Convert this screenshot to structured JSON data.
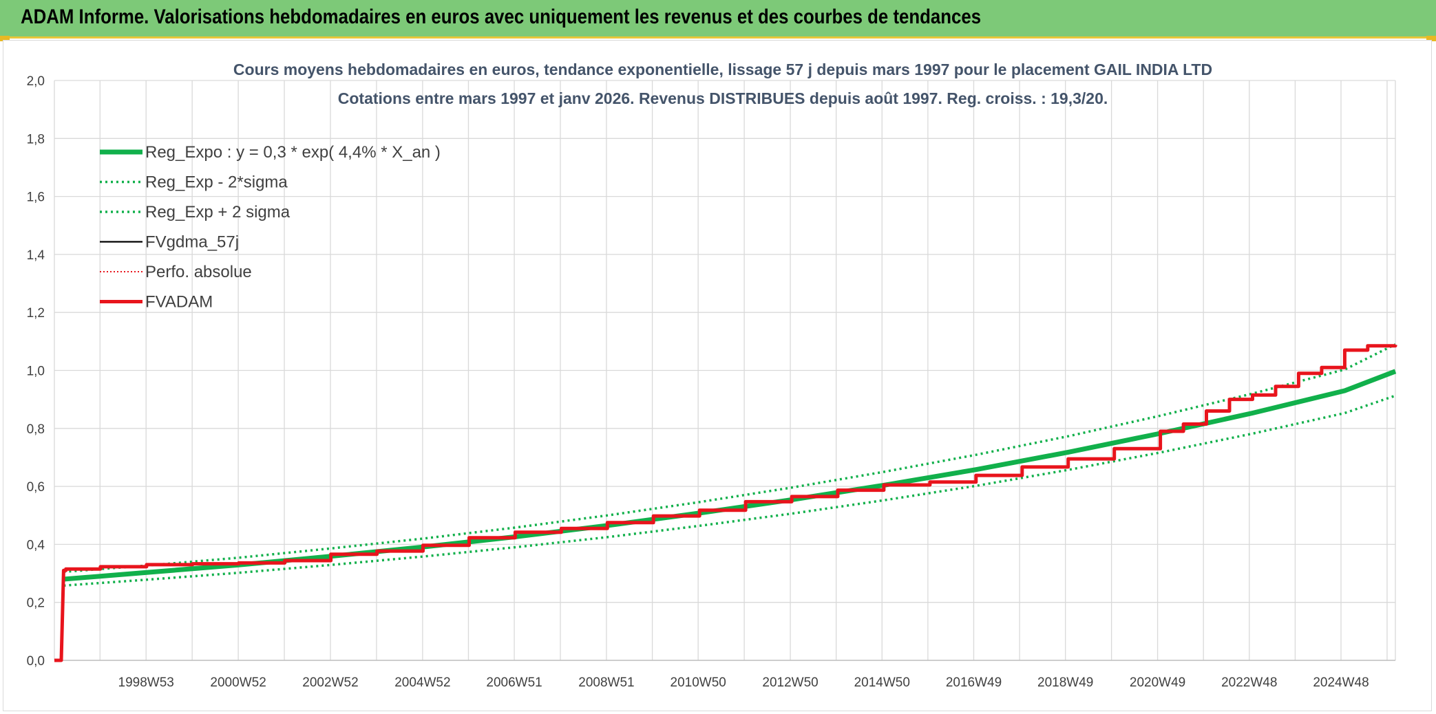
{
  "banner": {
    "title": "ADAM Informe. Valorisations hebdomadaires en euros avec uniquement les revenus et des courbes de tendances"
  },
  "colors": {
    "banner": "#7dc978",
    "banner_border": "#e8c63a",
    "green": "#11b04b",
    "red": "#e8141c",
    "black": "#000000",
    "grid": "#d9d9d9"
  },
  "chart_data": {
    "type": "line",
    "title": "Cours moyens hebdomadaires en euros, tendance exponentielle, lissage 57 j depuis mars 1997 pour le placement GAIL INDIA LTD",
    "subtitle": "Cotations entre mars 1997 et janv 2026. Revenus DISTRIBUES depuis août 1997. Reg. croiss. : 19,3/20.",
    "xlabel": "",
    "ylabel": "",
    "xlim": [
      1997.0,
      2026.1
    ],
    "ylim": [
      0,
      2
    ],
    "y_ticks": [
      "0,0",
      "0,2",
      "0,4",
      "0,6",
      "0,8",
      "1,0",
      "1,2",
      "1,4",
      "1,6",
      "1,8",
      "2,0"
    ],
    "x_ticks": [
      {
        "label": "1998W53",
        "x": 1998.99
      },
      {
        "label": "2000W52",
        "x": 2000.99
      },
      {
        "label": "2002W52",
        "x": 2002.99
      },
      {
        "label": "2004W52",
        "x": 2004.99
      },
      {
        "label": "2006W51",
        "x": 2006.98
      },
      {
        "label": "2008W51",
        "x": 2008.98
      },
      {
        "label": "2010W50",
        "x": 2010.97
      },
      {
        "label": "2012W50",
        "x": 2012.97
      },
      {
        "label": "2014W50",
        "x": 2014.96
      },
      {
        "label": "2016W49",
        "x": 2016.95
      },
      {
        "label": "2018W49",
        "x": 2018.94
      },
      {
        "label": "2020W49",
        "x": 2020.94
      },
      {
        "label": "2022W48",
        "x": 2022.93
      },
      {
        "label": "2024W48",
        "x": 2024.92
      }
    ],
    "grid": true,
    "legend_position": "top-left",
    "series": [
      {
        "name": "Reg_Expo : y = 0,3 * exp( 4,4% *  X_an )",
        "style": "solid-thick",
        "color": "#11b04b",
        "x": [
          1997.2,
          1999,
          2001,
          2003,
          2005,
          2007,
          2009,
          2011,
          2013,
          2015,
          2017,
          2019,
          2021,
          2023,
          2025,
          2026.1
        ],
        "y": [
          0.28,
          0.303,
          0.329,
          0.359,
          0.391,
          0.426,
          0.465,
          0.508,
          0.554,
          0.604,
          0.658,
          0.718,
          0.783,
          0.853,
          0.93,
          0.997
        ]
      },
      {
        "name": "Reg_Exp - 2*sigma",
        "style": "dotted",
        "color": "#11b04b",
        "x": [
          1997.2,
          1999,
          2001,
          2003,
          2005,
          2007,
          2009,
          2011,
          2013,
          2015,
          2017,
          2019,
          2021,
          2023,
          2025,
          2026.1
        ],
        "y": [
          0.258,
          0.278,
          0.302,
          0.329,
          0.358,
          0.39,
          0.425,
          0.464,
          0.506,
          0.552,
          0.602,
          0.657,
          0.717,
          0.782,
          0.853,
          0.913
        ]
      },
      {
        "name": "Reg_Exp + 2 sigma",
        "style": "dotted",
        "color": "#11b04b",
        "x": [
          1997.2,
          1999,
          2001,
          2003,
          2005,
          2007,
          2009,
          2011,
          2013,
          2015,
          2017,
          2019,
          2021,
          2023,
          2025,
          2026.1
        ],
        "y": [
          0.305,
          0.327,
          0.354,
          0.386,
          0.42,
          0.458,
          0.5,
          0.546,
          0.596,
          0.65,
          0.709,
          0.773,
          0.844,
          0.92,
          1.003,
          1.09
        ]
      },
      {
        "name": "FVgdma_57j",
        "style": "solid",
        "color": "#000000",
        "x": [
          1997.0,
          1997.15,
          1997.2,
          1997.25,
          1998,
          1999,
          2000,
          2001,
          2002,
          2003,
          2004,
          2005,
          2006,
          2007,
          2008,
          2009,
          2010,
          2011,
          2012,
          2013,
          2014,
          2015,
          2016,
          2017,
          2018,
          2019,
          2020,
          2021,
          2021.5,
          2022,
          2022.5,
          2023,
          2023.5,
          2024,
          2024.5,
          2025,
          2025.5,
          2026.1
        ],
        "y": [
          0.0,
          0.0,
          0.31,
          0.315,
          0.323,
          0.33,
          0.333,
          0.336,
          0.344,
          0.366,
          0.377,
          0.397,
          0.423,
          0.442,
          0.455,
          0.475,
          0.498,
          0.518,
          0.547,
          0.565,
          0.587,
          0.605,
          0.615,
          0.638,
          0.667,
          0.695,
          0.73,
          0.79,
          0.815,
          0.86,
          0.9,
          0.915,
          0.945,
          0.99,
          1.01,
          1.07,
          1.085,
          1.088
        ]
      },
      {
        "name": "Perfo. absolue",
        "style": "dotted",
        "color": "#e8141c",
        "x": [
          1997.0,
          1997.15,
          1997.2,
          1997.25,
          1998,
          1999,
          2000,
          2001,
          2002,
          2003,
          2004,
          2005,
          2006,
          2007,
          2008,
          2009,
          2010,
          2011,
          2012,
          2013,
          2014,
          2015,
          2016,
          2017,
          2018,
          2019,
          2020,
          2021,
          2021.5,
          2022,
          2022.5,
          2023,
          2023.5,
          2024,
          2024.5,
          2025,
          2025.5,
          2026.1
        ],
        "y": [
          0.0,
          0.0,
          0.31,
          0.315,
          0.323,
          0.33,
          0.333,
          0.336,
          0.344,
          0.366,
          0.377,
          0.397,
          0.423,
          0.442,
          0.455,
          0.475,
          0.498,
          0.518,
          0.547,
          0.565,
          0.587,
          0.605,
          0.615,
          0.638,
          0.667,
          0.695,
          0.73,
          0.79,
          0.815,
          0.86,
          0.9,
          0.915,
          0.945,
          0.99,
          1.01,
          1.07,
          1.085,
          1.088
        ]
      },
      {
        "name": "FVADAM",
        "style": "solid-thick",
        "color": "#e8141c",
        "x": [
          1997.0,
          1997.15,
          1997.2,
          1997.25,
          1998,
          1999,
          2000,
          2001,
          2002,
          2003,
          2004,
          2005,
          2006,
          2007,
          2008,
          2009,
          2010,
          2011,
          2012,
          2013,
          2014,
          2015,
          2016,
          2017,
          2018,
          2019,
          2020,
          2021,
          2021.5,
          2022,
          2022.5,
          2023,
          2023.5,
          2024,
          2024.5,
          2025,
          2025.5,
          2026.1
        ],
        "y": [
          0.0,
          0.0,
          0.31,
          0.315,
          0.323,
          0.33,
          0.333,
          0.336,
          0.344,
          0.366,
          0.377,
          0.397,
          0.423,
          0.442,
          0.455,
          0.475,
          0.498,
          0.518,
          0.547,
          0.565,
          0.587,
          0.605,
          0.615,
          0.638,
          0.667,
          0.695,
          0.73,
          0.79,
          0.815,
          0.86,
          0.9,
          0.915,
          0.945,
          0.99,
          1.01,
          1.07,
          1.085,
          1.088
        ]
      }
    ]
  }
}
